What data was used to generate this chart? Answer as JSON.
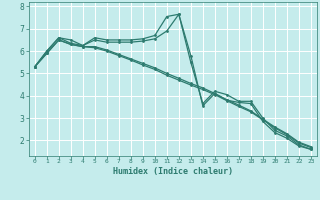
{
  "xlabel": "Humidex (Indice chaleur)",
  "bg_color": "#c5ecec",
  "line_color": "#2d7b6f",
  "xlim": [
    -0.5,
    23.5
  ],
  "ylim": [
    1.3,
    8.2
  ],
  "xticks": [
    0,
    1,
    2,
    3,
    4,
    5,
    6,
    7,
    8,
    9,
    10,
    11,
    12,
    13,
    14,
    15,
    16,
    17,
    18,
    19,
    20,
    21,
    22,
    23
  ],
  "yticks": [
    2,
    3,
    4,
    5,
    6,
    7,
    8
  ],
  "line1_x": [
    0,
    1,
    2,
    3,
    4,
    5,
    6,
    7,
    8,
    9,
    10,
    11,
    12,
    13,
    14,
    15,
    16,
    17,
    18,
    19,
    20,
    21,
    22,
    23
  ],
  "line1_y": [
    5.3,
    6.0,
    6.6,
    6.5,
    6.25,
    6.6,
    6.5,
    6.5,
    6.5,
    6.55,
    6.7,
    7.55,
    7.65,
    5.5,
    3.65,
    4.2,
    4.05,
    3.75,
    3.75,
    3.0,
    2.45,
    2.2,
    1.8,
    1.6
  ],
  "line2_x": [
    0,
    1,
    2,
    3,
    4,
    5,
    6,
    7,
    8,
    9,
    10,
    11,
    12,
    13,
    14,
    15,
    16,
    17,
    18,
    19,
    20,
    21,
    22,
    23
  ],
  "line2_y": [
    5.3,
    6.0,
    6.6,
    6.35,
    6.25,
    6.5,
    6.4,
    6.4,
    6.4,
    6.45,
    6.55,
    6.9,
    7.65,
    5.8,
    3.55,
    4.1,
    3.8,
    3.7,
    3.65,
    2.85,
    2.35,
    2.1,
    1.75,
    1.6
  ],
  "line3_x": [
    0,
    1,
    2,
    3,
    4,
    5,
    6,
    7,
    8,
    9,
    10,
    11,
    12,
    13,
    14,
    15,
    16,
    17,
    18,
    19,
    20,
    21,
    22,
    23
  ],
  "line3_y": [
    5.3,
    5.9,
    6.5,
    6.3,
    6.2,
    6.2,
    6.05,
    5.85,
    5.65,
    5.45,
    5.25,
    5.0,
    4.78,
    4.55,
    4.35,
    4.1,
    3.82,
    3.58,
    3.32,
    2.95,
    2.6,
    2.3,
    1.92,
    1.72
  ],
  "line4_x": [
    0,
    1,
    2,
    3,
    4,
    5,
    6,
    7,
    8,
    9,
    10,
    11,
    12,
    13,
    14,
    15,
    16,
    17,
    18,
    19,
    20,
    21,
    22,
    23
  ],
  "line4_y": [
    5.3,
    5.9,
    6.5,
    6.3,
    6.2,
    6.15,
    6.0,
    5.8,
    5.6,
    5.38,
    5.18,
    4.92,
    4.7,
    4.48,
    4.28,
    4.05,
    3.78,
    3.52,
    3.28,
    2.92,
    2.56,
    2.26,
    1.88,
    1.68
  ]
}
